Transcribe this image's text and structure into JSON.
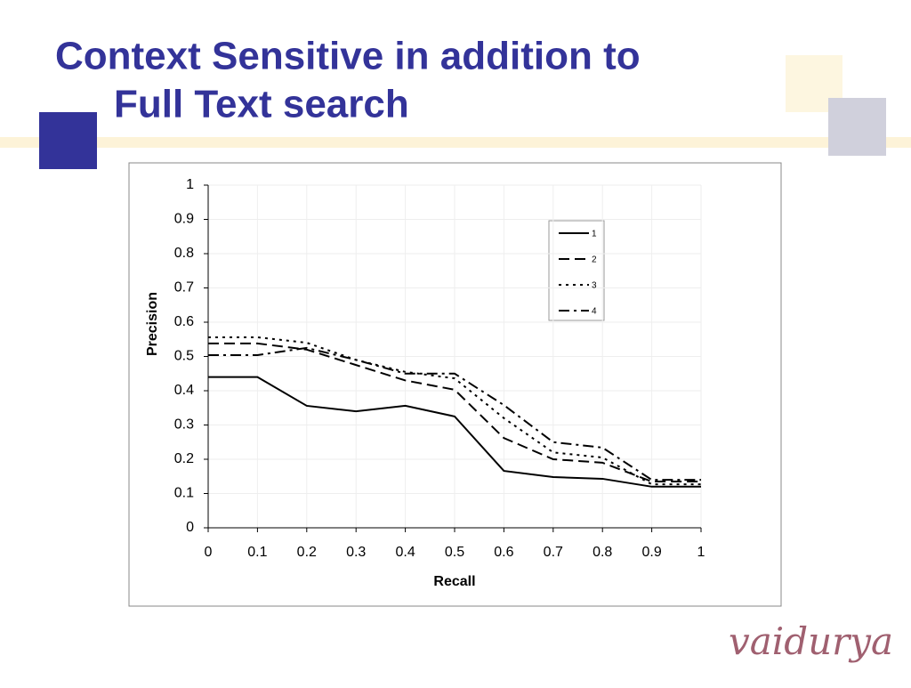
{
  "slide": {
    "title_lines": [
      "Context Sensitive in addition to",
      "Full Text search"
    ],
    "logo": "vaidurya"
  },
  "chart_data": {
    "type": "line",
    "x_label": "Recall",
    "y_label": "Precision",
    "x": [
      0,
      0.1,
      0.2,
      0.3,
      0.4,
      0.5,
      0.6,
      0.7,
      0.8,
      0.9,
      1
    ],
    "xlim": [
      0,
      1
    ],
    "xticks": [
      0,
      0.1,
      0.2,
      0.3,
      0.4,
      0.5,
      0.6,
      0.7,
      0.8,
      0.9,
      1
    ],
    "ylim": [
      0,
      1
    ],
    "yticks": [
      0,
      0.1,
      0.2,
      0.3,
      0.4,
      0.5,
      0.6,
      0.7,
      0.8,
      0.9,
      1
    ],
    "grid": true,
    "legend": "upper right",
    "series": [
      {
        "name": "1",
        "color": "#000000",
        "dash": "solid",
        "values": [
          0.44,
          0.44,
          0.356,
          0.34,
          0.356,
          0.325,
          0.166,
          0.148,
          0.143,
          0.12,
          0.12
        ]
      },
      {
        "name": "2",
        "color": "#000000",
        "dash": "dashed",
        "values": [
          0.538,
          0.538,
          0.52,
          0.475,
          0.43,
          0.403,
          0.262,
          0.2,
          0.19,
          0.135,
          0.135
        ]
      },
      {
        "name": "3",
        "color": "#000000",
        "dash": "dotted",
        "values": [
          0.556,
          0.556,
          0.54,
          0.49,
          0.455,
          0.436,
          0.32,
          0.22,
          0.205,
          0.127,
          0.127
        ]
      },
      {
        "name": "4",
        "color": "#000000",
        "dash": "dashdot",
        "values": [
          0.504,
          0.504,
          0.525,
          0.49,
          0.45,
          0.45,
          0.358,
          0.25,
          0.234,
          0.14,
          0.14
        ]
      }
    ]
  }
}
